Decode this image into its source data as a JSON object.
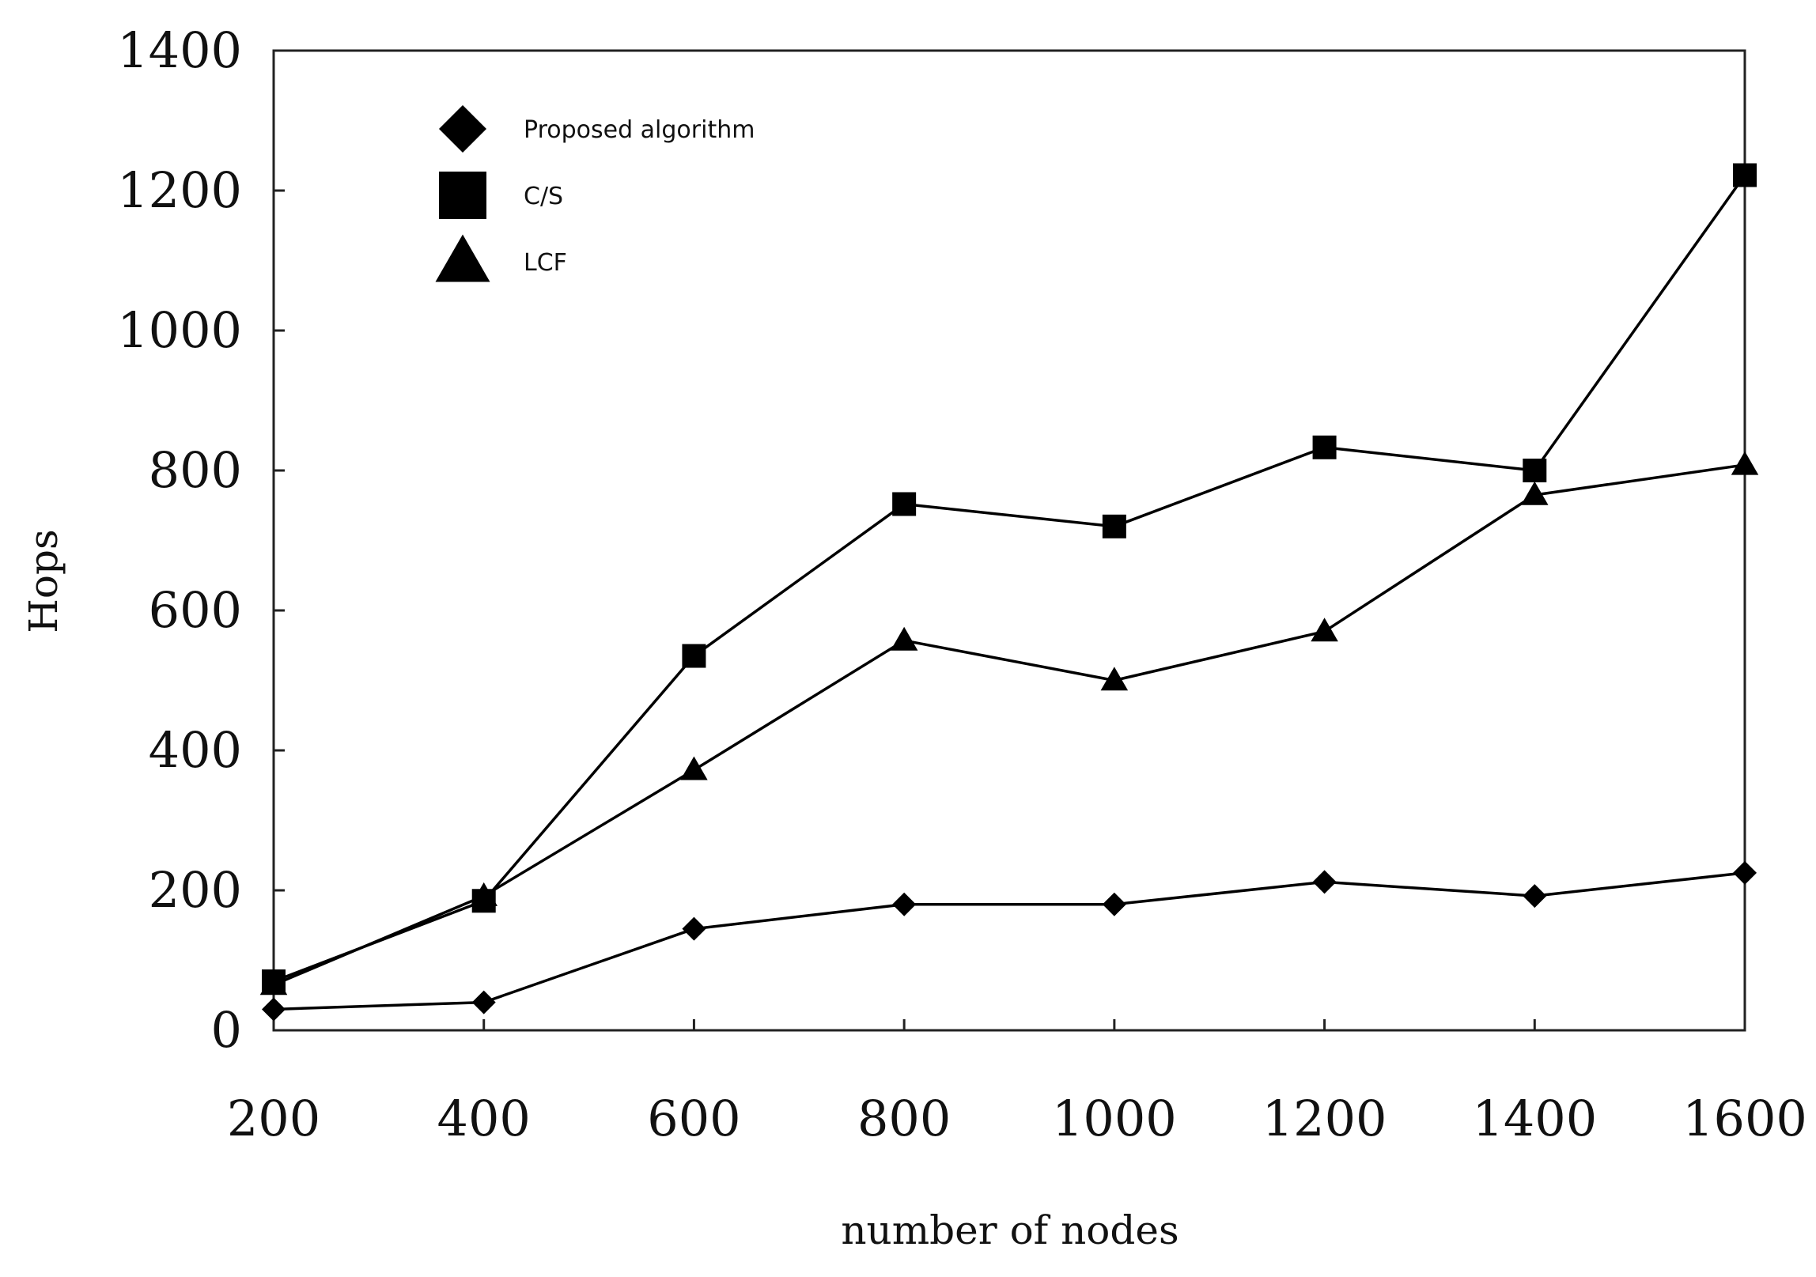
{
  "chart_data": {
    "type": "line",
    "title": "",
    "xlabel": "number of nodes",
    "ylabel": "Hops",
    "x": [
      200,
      400,
      600,
      800,
      1000,
      1200,
      1400,
      1600
    ],
    "xlim": [
      200,
      1600
    ],
    "ylim": [
      0,
      1400
    ],
    "x_ticks": [
      200,
      400,
      600,
      800,
      1000,
      1200,
      1400,
      1600
    ],
    "y_ticks": [
      0,
      200,
      400,
      600,
      800,
      1000,
      1200,
      1400
    ],
    "grid": false,
    "legend_position": "top-left",
    "series": [
      {
        "name": "Proposed algorithm",
        "marker": "diamond",
        "color": "#000000",
        "values": [
          30,
          40,
          145,
          180,
          180,
          212,
          192,
          225
        ]
      },
      {
        "name": "C/S",
        "marker": "square",
        "color": "#000000",
        "values": [
          70,
          185,
          535,
          752,
          720,
          833,
          800,
          1222
        ]
      },
      {
        "name": "LCF",
        "marker": "triangle",
        "color": "#000000",
        "values": [
          65,
          192,
          372,
          557,
          500,
          570,
          765,
          808
        ]
      }
    ]
  }
}
